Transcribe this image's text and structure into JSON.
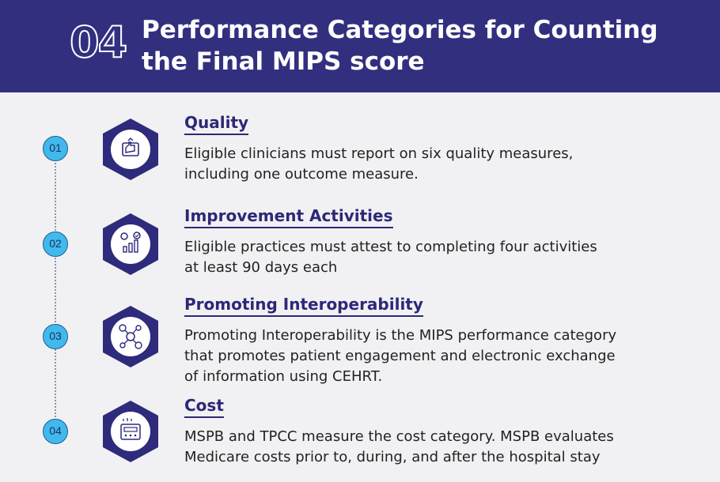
{
  "header": {
    "number": "04",
    "title_line1": "Performance Categories for Counting",
    "title_line2": "the Final MIPS score"
  },
  "items": [
    {
      "number": "01",
      "heading": "Quality",
      "icon": "quality-thumbs-up-icon",
      "desc_line1": "Eligible clinicians must report on six quality measures,",
      "desc_line2": "including one outcome measure.",
      "desc_line3": ""
    },
    {
      "number": "02",
      "heading": "Improvement Activities",
      "icon": "improvement-chart-gear-icon",
      "desc_line1": "Eligible practices must attest to completing four activities",
      "desc_line2": "at least 90 days each",
      "desc_line3": ""
    },
    {
      "number": "03",
      "heading": "Promoting Interoperability",
      "icon": "interoperability-network-icon",
      "desc_line1": "Promoting Interoperability is the MIPS performance category",
      "desc_line2": "that promotes patient engagement and electronic exchange",
      "desc_line3": "of information using CEHRT."
    },
    {
      "number": "04",
      "heading": "Cost",
      "icon": "cost-calculator-icon",
      "desc_line1": "MSPB and TPCC measure the cost category. MSPB evaluates",
      "desc_line2": "Medicare costs prior to, during, and after the hospital stay",
      "desc_line3": ""
    }
  ],
  "colors": {
    "header_bg": "#332f7f",
    "accent_navy": "#2c2878",
    "circle_blue": "#41b9ec"
  }
}
